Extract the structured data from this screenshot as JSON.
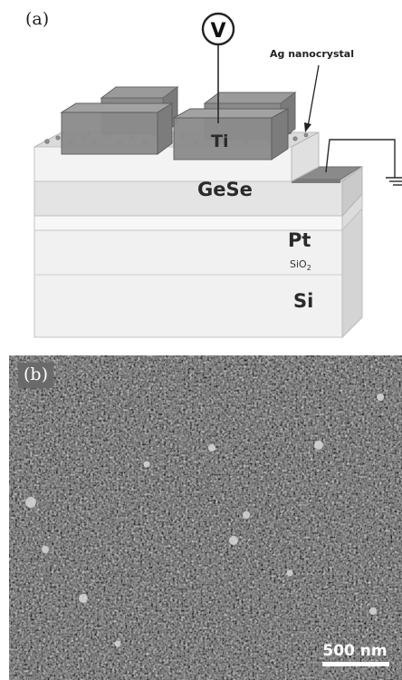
{
  "panel_a": {
    "label": "(a)",
    "voltmeter": "V",
    "electrode": "Ti",
    "nanocrystal_label": "Ag nanocrystal",
    "layers": {
      "gese": "GeSe",
      "pt": "Pt",
      "sio2_main": "SiO",
      "sio2_sub": "2",
      "si": "Si"
    }
  },
  "panel_b": {
    "label": "(b)",
    "scale_bar": "500 nm"
  }
}
